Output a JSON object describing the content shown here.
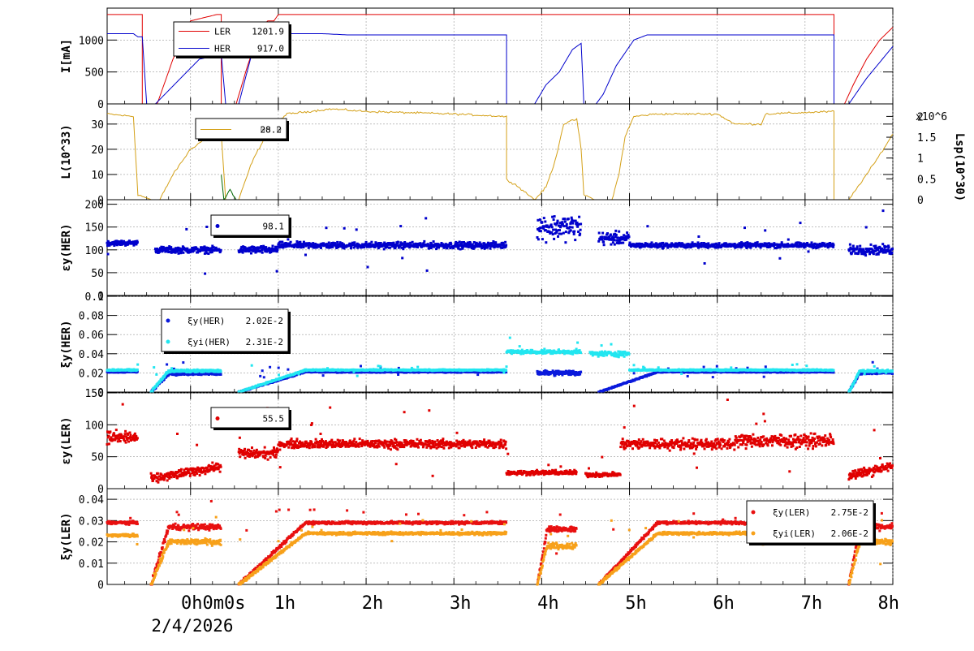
{
  "x_axis": {
    "ticks": [
      {
        "t": 0,
        "label": "0h0m0s"
      },
      {
        "t": 1,
        "label": "1h"
      },
      {
        "t": 2,
        "label": "2h"
      },
      {
        "t": 3,
        "label": "3h"
      },
      {
        "t": 4,
        "label": "4h"
      },
      {
        "t": 5,
        "label": "5h"
      },
      {
        "t": 6,
        "label": "6h"
      },
      {
        "t": 7,
        "label": "7h"
      },
      {
        "t": 8,
        "label": "8h"
      }
    ],
    "date_label": "2/4/2026",
    "range_hours": [
      -0.95,
      8.0
    ]
  },
  "colors": {
    "ler": "#e00000",
    "her": "#0000cc",
    "lumi": "#d4a017",
    "lumi_sp": "#006600",
    "xi_her": "#0a1adc",
    "xi_her_i": "#22e6f0",
    "xi_ler": "#e81010",
    "xi_ler_i": "#f7a11a"
  },
  "chart_data": [
    {
      "type": "line",
      "ylabel": "I[mA]",
      "ylim": [
        0,
        1500
      ],
      "yticks": [
        "0",
        "500",
        "1000"
      ],
      "legend": [
        {
          "name": "LER",
          "value": "1201.9",
          "color": "#e00000"
        },
        {
          "name": "HER",
          "value": "917.0",
          "color": "#0000cc"
        }
      ],
      "series": [
        {
          "name": "LER",
          "points": [
            [
              -0.95,
              1400
            ],
            [
              -0.55,
              1400
            ],
            [
              -0.55,
              0
            ],
            [
              -0.38,
              0
            ],
            [
              -0.2,
              700
            ],
            [
              -0.1,
              1000
            ],
            [
              0,
              1300
            ],
            [
              0.3,
              1400
            ],
            [
              0.35,
              1400
            ],
            [
              0.35,
              0
            ],
            [
              0.52,
              0
            ],
            [
              0.65,
              600
            ],
            [
              0.8,
              1200
            ],
            [
              0.88,
              1300
            ],
            [
              0.95,
              1300
            ],
            [
              1.0,
              1400
            ],
            [
              2.0,
              1400
            ],
            [
              4.0,
              1400
            ],
            [
              7.33,
              1400
            ],
            [
              7.33,
              0
            ],
            [
              7.45,
              0
            ],
            [
              7.55,
              300
            ],
            [
              7.7,
              700
            ],
            [
              7.85,
              1000
            ],
            [
              8.0,
              1200
            ]
          ]
        },
        {
          "name": "HER",
          "points": [
            [
              -0.95,
              1100
            ],
            [
              -0.65,
              1100
            ],
            [
              -0.6,
              1050
            ],
            [
              -0.55,
              1050
            ],
            [
              -0.5,
              0
            ],
            [
              -0.4,
              0
            ],
            [
              0.1,
              700
            ],
            [
              0.35,
              780
            ],
            [
              0.4,
              0
            ],
            [
              0.55,
              0
            ],
            [
              0.7,
              800
            ],
            [
              0.85,
              950
            ],
            [
              0.9,
              1000
            ],
            [
              0.95,
              1060
            ],
            [
              1.05,
              1100
            ],
            [
              1.5,
              1100
            ],
            [
              1.8,
              1080
            ],
            [
              3.6,
              1080
            ],
            [
              3.6,
              0
            ],
            [
              3.92,
              0
            ],
            [
              4.05,
              300
            ],
            [
              4.2,
              500
            ],
            [
              4.35,
              850
            ],
            [
              4.45,
              950
            ],
            [
              4.48,
              0
            ],
            [
              4.62,
              0
            ],
            [
              4.7,
              150
            ],
            [
              4.85,
              600
            ],
            [
              4.95,
              800
            ],
            [
              5.05,
              1000
            ],
            [
              5.2,
              1080
            ],
            [
              7.33,
              1080
            ],
            [
              7.33,
              0
            ],
            [
              7.5,
              0
            ],
            [
              7.7,
              400
            ],
            [
              7.85,
              650
            ],
            [
              8.0,
              900
            ]
          ]
        }
      ]
    },
    {
      "type": "line",
      "ylabel": "L(10^33)",
      "ylim": [
        0,
        38
      ],
      "yticks": [
        "0",
        "10",
        "20",
        "30"
      ],
      "right_axis": {
        "label": "Lsp(10^30)",
        "multiplier": "x10^6",
        "ylim": [
          0,
          2.3
        ],
        "ticks": [
          "0",
          "0.5",
          "1",
          "1.5",
          "2"
        ]
      },
      "legend": [
        {
          "name": "",
          "value": "28.2",
          "overlay_value": "00.0",
          "color": "#d4a017"
        }
      ],
      "series": [
        {
          "name": "L",
          "points": [
            [
              -0.95,
              34
            ],
            [
              -0.65,
              33
            ],
            [
              -0.6,
              2
            ],
            [
              -0.45,
              0
            ],
            [
              -0.35,
              0
            ],
            [
              -0.2,
              10
            ],
            [
              0,
              20
            ],
            [
              0.2,
              25
            ],
            [
              0.35,
              26
            ],
            [
              0.4,
              0
            ],
            [
              0.55,
              0
            ],
            [
              0.7,
              15
            ],
            [
              0.85,
              25
            ],
            [
              0.95,
              30
            ],
            [
              1.1,
              34
            ],
            [
              1.6,
              36
            ],
            [
              2.0,
              35
            ],
            [
              3.0,
              34
            ],
            [
              3.6,
              33
            ],
            [
              3.6,
              8
            ],
            [
              3.7,
              6
            ],
            [
              3.92,
              0
            ],
            [
              4.05,
              5
            ],
            [
              4.15,
              15
            ],
            [
              4.25,
              30
            ],
            [
              4.4,
              32
            ],
            [
              4.45,
              20
            ],
            [
              4.48,
              2
            ],
            [
              4.6,
              0
            ],
            [
              4.8,
              0
            ],
            [
              4.88,
              10
            ],
            [
              4.95,
              25
            ],
            [
              5.05,
              33
            ],
            [
              5.3,
              34
            ],
            [
              6.0,
              34
            ],
            [
              6.2,
              30
            ],
            [
              6.5,
              30
            ],
            [
              6.55,
              34
            ],
            [
              7.33,
              35
            ],
            [
              7.33,
              0
            ],
            [
              7.5,
              0
            ],
            [
              7.6,
              5
            ],
            [
              7.8,
              15
            ],
            [
              8.0,
              26
            ]
          ]
        },
        {
          "name": "Lsp",
          "points": [
            [
              0.35,
              10
            ],
            [
              0.38,
              0
            ],
            [
              0.45,
              4
            ],
            [
              0.52,
              0
            ]
          ]
        }
      ]
    },
    {
      "type": "scatter",
      "ylabel": "εy(HER)",
      "ylim": [
        0,
        210
      ],
      "yticks": [
        "0",
        "50",
        "100",
        "150",
        "200"
      ],
      "legend": [
        {
          "name": "",
          "value": "98.1",
          "color": "#0000cc"
        }
      ],
      "segments": [
        {
          "x": [
            -0.95,
            -0.6
          ],
          "level": 115,
          "spread": 8
        },
        {
          "x": [
            -0.4,
            0.35
          ],
          "level": 100,
          "spread": 10
        },
        {
          "x": [
            0.55,
            1.0
          ],
          "level": 100,
          "spread": 12
        },
        {
          "x": [
            1.0,
            3.6
          ],
          "level": 110,
          "spread": 10
        },
        {
          "x": [
            3.95,
            4.45
          ],
          "level": 150,
          "spread": 40
        },
        {
          "x": [
            4.65,
            5.0
          ],
          "level": 125,
          "spread": 20
        },
        {
          "x": [
            5.0,
            7.33
          ],
          "level": 110,
          "spread": 8
        },
        {
          "x": [
            7.5,
            8.0
          ],
          "level": 100,
          "spread": 15
        }
      ]
    },
    {
      "type": "scatter",
      "ylabel": "ξy(HER)",
      "ylim": [
        0,
        0.1
      ],
      "yticks": [
        "0",
        "0.02",
        "0.04",
        "0.06",
        "0.08",
        "0.1"
      ],
      "legend": [
        {
          "name": "ξy(HER)",
          "value": "2.02E-2",
          "color": "#0a1adc"
        },
        {
          "name": "ξyi(HER)",
          "value": "2.31E-2",
          "color": "#22e6f0"
        }
      ],
      "series": [
        {
          "name": "ξy(HER)",
          "segments": [
            {
              "x": [
                -0.95,
                -0.6
              ],
              "level": 0.021,
              "spread": 0.001
            },
            {
              "x": [
                -0.45,
                0.35
              ],
              "level": 0.019,
              "spread": 0.002,
              "ramp": true
            },
            {
              "x": [
                0.55,
                3.6
              ],
              "level": 0.021,
              "spread": 0.001,
              "ramp": true
            },
            {
              "x": [
                3.95,
                4.45
              ],
              "level": 0.02,
              "spread": 0.004
            },
            {
              "x": [
                4.65,
                7.33
              ],
              "level": 0.021,
              "spread": 0.001,
              "ramp": true
            },
            {
              "x": [
                7.5,
                8.0
              ],
              "level": 0.02,
              "spread": 0.002,
              "ramp": true
            }
          ]
        },
        {
          "name": "ξyi(HER)",
          "segments": [
            {
              "x": [
                -0.95,
                -0.6
              ],
              "level": 0.023,
              "spread": 0.001
            },
            {
              "x": [
                -0.45,
                0.35
              ],
              "level": 0.022,
              "spread": 0.002,
              "ramp": true
            },
            {
              "x": [
                0.55,
                3.6
              ],
              "level": 0.023,
              "spread": 0.001,
              "ramp": true
            },
            {
              "x": [
                3.6,
                4.45
              ],
              "level": 0.042,
              "spread": 0.003
            },
            {
              "x": [
                4.55,
                5.0
              ],
              "level": 0.04,
              "spread": 0.004
            },
            {
              "x": [
                5.0,
                7.33
              ],
              "level": 0.023,
              "spread": 0.001
            },
            {
              "x": [
                7.5,
                8.0
              ],
              "level": 0.022,
              "spread": 0.002,
              "ramp": true
            }
          ]
        }
      ]
    },
    {
      "type": "scatter",
      "ylabel": "εy(LER)",
      "ylim": [
        0,
        150
      ],
      "yticks": [
        "0",
        "50",
        "100",
        "150"
      ],
      "legend": [
        {
          "name": "",
          "value": "55.5",
          "color": "#e00000"
        }
      ],
      "segments": [
        {
          "x": [
            -0.95,
            -0.6
          ],
          "level": 80,
          "spread": 15
        },
        {
          "x": [
            -0.45,
            0.35
          ],
          "level": 35,
          "spread": 10,
          "ramp_from": 15
        },
        {
          "x": [
            0.55,
            1.0
          ],
          "level": 55,
          "spread": 12
        },
        {
          "x": [
            1.0,
            3.6
          ],
          "level": 70,
          "spread": 10
        },
        {
          "x": [
            3.6,
            4.4
          ],
          "level": 25,
          "spread": 5
        },
        {
          "x": [
            4.5,
            4.9
          ],
          "level": 22,
          "spread": 5
        },
        {
          "x": [
            4.9,
            6.2
          ],
          "level": 70,
          "spread": 12
        },
        {
          "x": [
            6.2,
            7.33
          ],
          "level": 75,
          "spread": 15
        },
        {
          "x": [
            7.5,
            8.0
          ],
          "level": 35,
          "spread": 10,
          "ramp_from": 20
        }
      ]
    },
    {
      "type": "scatter",
      "ylabel": "ξy(LER)",
      "ylim": [
        0,
        0.045
      ],
      "yticks": [
        "0",
        "0.01",
        "0.02",
        "0.03",
        "0.04"
      ],
      "legend": [
        {
          "name": "ξy(LER)",
          "value": "2.75E-2",
          "color": "#e81010"
        },
        {
          "name": "ξyi(LER)",
          "value": "2.06E-2",
          "color": "#f7a11a"
        }
      ],
      "series": [
        {
          "name": "ξy(LER)",
          "segments": [
            {
              "x": [
                -0.95,
                -0.6
              ],
              "level": 0.029,
              "spread": 0.001
            },
            {
              "x": [
                -0.45,
                0.35
              ],
              "level": 0.027,
              "spread": 0.002,
              "ramp": true
            },
            {
              "x": [
                0.55,
                3.6
              ],
              "level": 0.029,
              "spread": 0.001,
              "ramp": true
            },
            {
              "x": [
                3.95,
                4.4
              ],
              "level": 0.026,
              "spread": 0.002,
              "ramp": true
            },
            {
              "x": [
                4.65,
                7.33
              ],
              "level": 0.029,
              "spread": 0.001,
              "ramp": true
            },
            {
              "x": [
                7.5,
                8.0
              ],
              "level": 0.027,
              "spread": 0.002,
              "ramp": true
            }
          ]
        },
        {
          "name": "ξyi(LER)",
          "segments": [
            {
              "x": [
                -0.95,
                -0.6
              ],
              "level": 0.023,
              "spread": 0.001
            },
            {
              "x": [
                -0.45,
                0.35
              ],
              "level": 0.02,
              "spread": 0.002,
              "ramp": true
            },
            {
              "x": [
                0.55,
                3.6
              ],
              "level": 0.024,
              "spread": 0.001,
              "ramp": true
            },
            {
              "x": [
                3.95,
                4.4
              ],
              "level": 0.018,
              "spread": 0.002,
              "ramp": true
            },
            {
              "x": [
                4.65,
                7.33
              ],
              "level": 0.024,
              "spread": 0.001,
              "ramp": true
            },
            {
              "x": [
                7.5,
                8.0
              ],
              "level": 0.02,
              "spread": 0.002,
              "ramp": true
            }
          ]
        }
      ]
    }
  ]
}
